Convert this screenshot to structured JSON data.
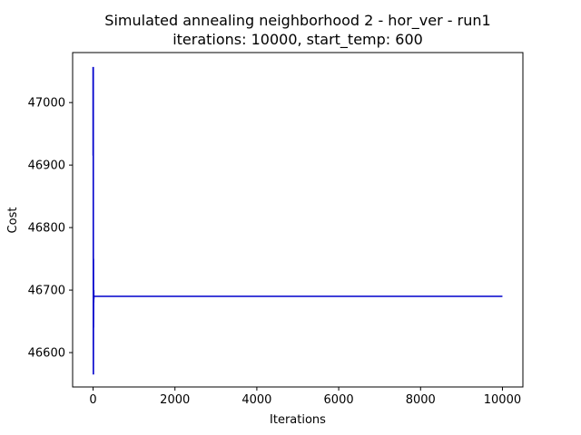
{
  "chart_data": {
    "type": "line",
    "title": "Simulated annealing neighborhood 2 - hor_ver - run1",
    "subtitle": "iterations: 10000, start_temp: 600",
    "xlabel": "Iterations",
    "ylabel": "Cost",
    "xlim": [
      -500,
      10500
    ],
    "ylim": [
      46545,
      47080
    ],
    "xticks": [
      0,
      2000,
      4000,
      6000,
      8000,
      10000
    ],
    "xtick_labels": [
      "0",
      "2000",
      "4000",
      "6000",
      "8000",
      "10000"
    ],
    "yticks": [
      46600,
      46700,
      46800,
      46900,
      47000
    ],
    "ytick_labels": [
      "46600",
      "46700",
      "46800",
      "46900",
      "47000"
    ],
    "grid": false,
    "series": [
      {
        "color": "#0000cc",
        "x": [
          0,
          1,
          2,
          3,
          4,
          5,
          6,
          7,
          8,
          9,
          10,
          12,
          14,
          16,
          18,
          20,
          25,
          30,
          10000
        ],
        "y": [
          47057,
          46915,
          47057,
          46980,
          47057,
          46840,
          46620,
          46565,
          46700,
          46750,
          46640,
          46690,
          46680,
          46700,
          46685,
          46690,
          46690,
          46690,
          46690
        ]
      }
    ]
  }
}
